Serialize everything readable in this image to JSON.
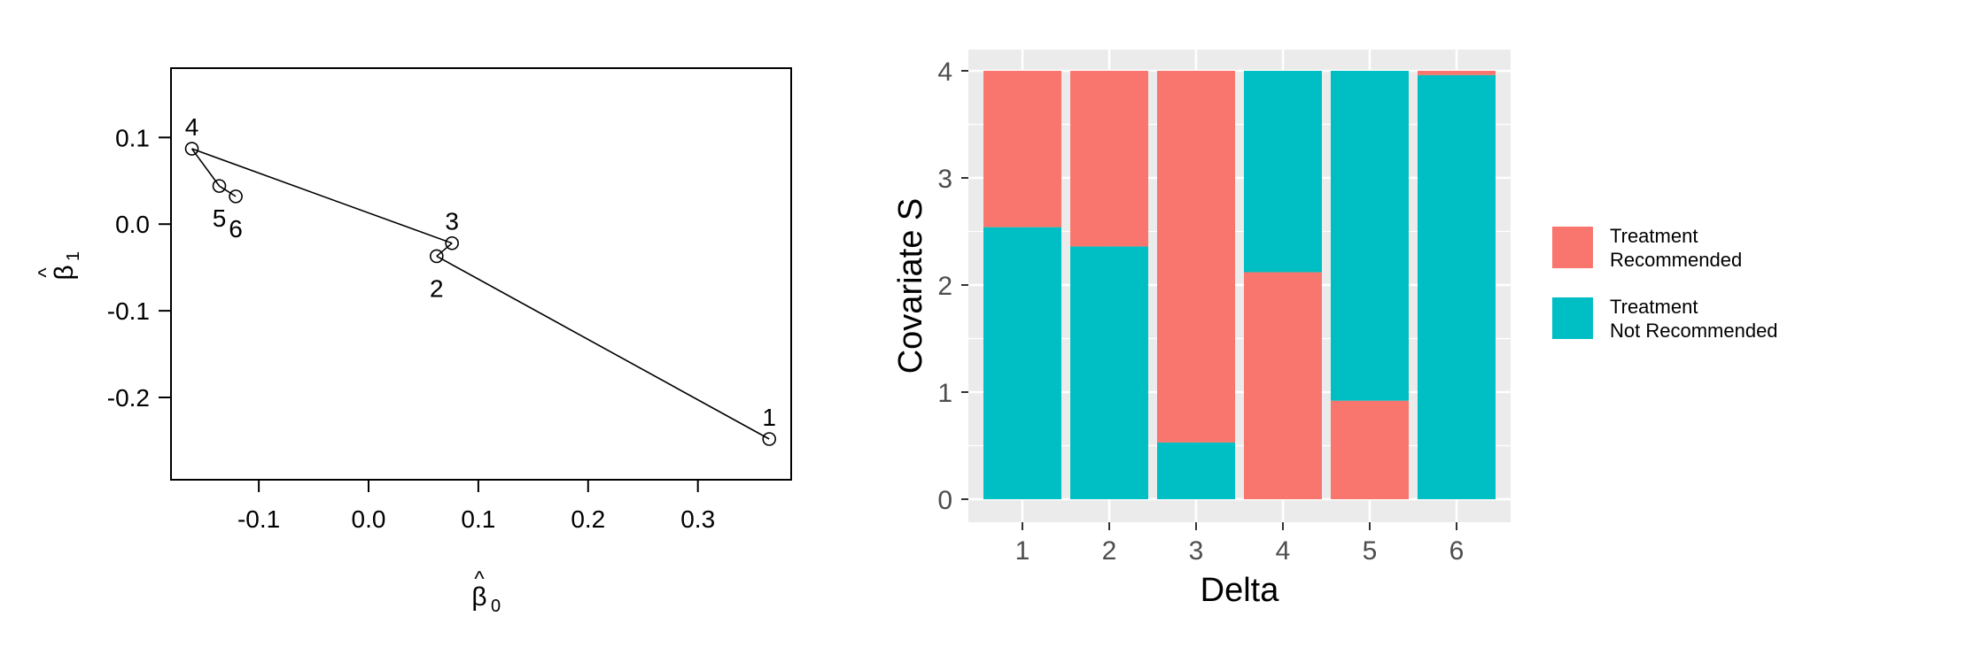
{
  "chart_data": [
    {
      "type": "line",
      "title": "",
      "xlabel": "β̂0",
      "ylabel": "β̂1",
      "xlabel_symbol": "β",
      "xlabel_hat": "^",
      "xlabel_sub": "0",
      "ylabel_symbol": "β",
      "ylabel_hat": "^",
      "ylabel_sub": "1",
      "xlim": [
        -0.18,
        0.385
      ],
      "ylim": [
        -0.295,
        0.18
      ],
      "xticks": [
        -0.1,
        0.0,
        0.1,
        0.2,
        0.3
      ],
      "xtick_labels": [
        "-0.1",
        "0.0",
        "0.1",
        "0.2",
        "0.3"
      ],
      "yticks": [
        0.1,
        0.0,
        -0.1,
        -0.2
      ],
      "ytick_labels": [
        "0.1",
        "0.0",
        "-0.1",
        "-0.2"
      ],
      "points": [
        {
          "label": "1",
          "x": 0.365,
          "y": -0.248,
          "label_pos": "above"
        },
        {
          "label": "2",
          "x": 0.062,
          "y": -0.037,
          "label_pos": "below"
        },
        {
          "label": "3",
          "x": 0.076,
          "y": -0.022,
          "label_pos": "above"
        },
        {
          "label": "4",
          "x": -0.161,
          "y": 0.087,
          "label_pos": "above"
        },
        {
          "label": "5",
          "x": -0.136,
          "y": 0.044,
          "label_pos": "below"
        },
        {
          "label": "6",
          "x": -0.121,
          "y": 0.032,
          "label_pos": "below"
        }
      ],
      "path_order": [
        "1",
        "2",
        "3",
        "4",
        "5",
        "6"
      ]
    },
    {
      "type": "bar",
      "stacked": true,
      "title": "",
      "xlabel": "Delta",
      "ylabel": "Covariate S",
      "categories": [
        "1",
        "2",
        "3",
        "4",
        "5",
        "6"
      ],
      "ylim": [
        0,
        4
      ],
      "yticks": [
        0,
        1,
        2,
        3,
        4
      ],
      "ytick_labels": [
        "0",
        "1",
        "2",
        "3",
        "4"
      ],
      "stack_order": "Treatment Not Recommended at bottom in categories 1-3 and 6; Treatment Recommended at bottom in categories 4-5",
      "series": [
        {
          "name": "Treatment Recommended",
          "color": "#F8766D",
          "values": [
            1.46,
            1.64,
            3.47,
            2.12,
            0.92,
            0.04
          ]
        },
        {
          "name": "Treatment Not Recommended",
          "color": "#00BFC4",
          "values": [
            2.54,
            2.36,
            0.53,
            1.88,
            3.08,
            3.96
          ]
        }
      ],
      "bottom_series": [
        "Treatment Not Recommended",
        "Treatment Not Recommended",
        "Treatment Not Recommended",
        "Treatment Recommended",
        "Treatment Recommended",
        "Treatment Not Recommended"
      ],
      "legend": {
        "position": "right",
        "entries": [
          {
            "lines": [
              "Treatment",
              "Recommended"
            ],
            "color": "#F8766D"
          },
          {
            "lines": [
              "Treatment",
              "Not Recommended"
            ],
            "color": "#00BFC4"
          }
        ]
      },
      "panel_background": "#EBEBEB",
      "grid": true
    }
  ]
}
